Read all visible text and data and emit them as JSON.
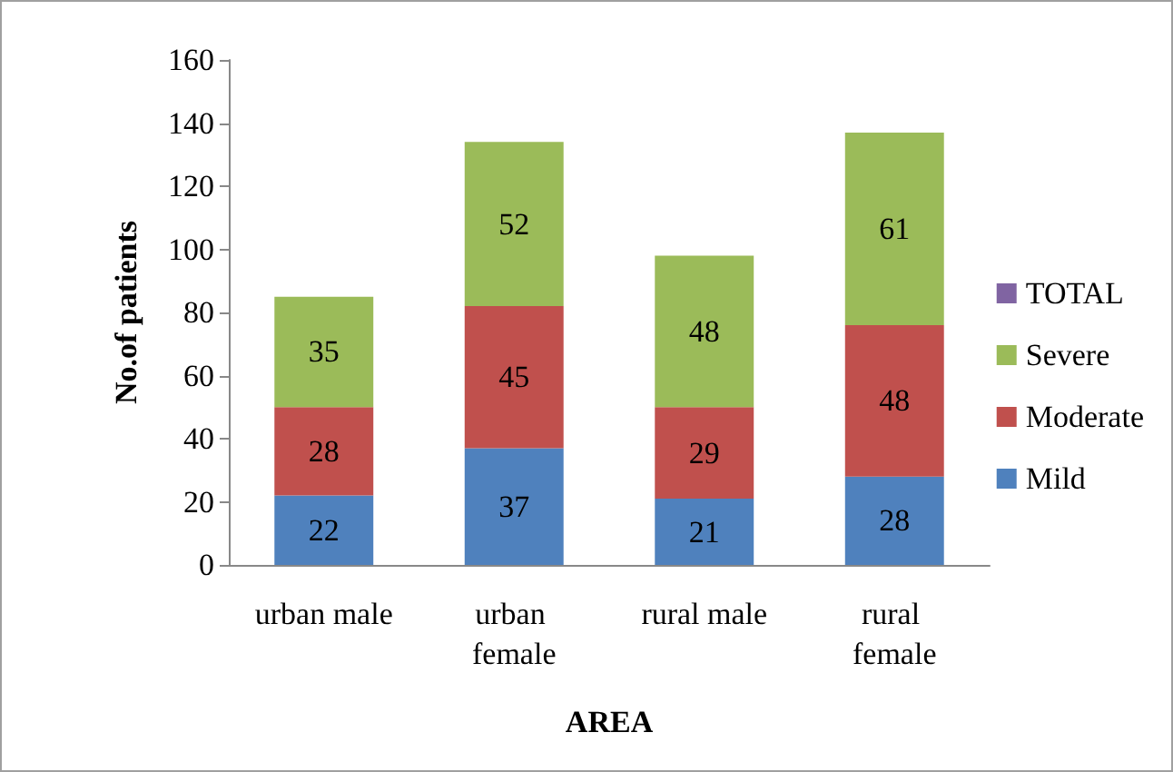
{
  "chart_data": {
    "type": "bar",
    "stacked": true,
    "xlabel": "AREA",
    "ylabel": "No.of patients",
    "categories": [
      "urban male",
      "urban female",
      "rural male",
      "rural female"
    ],
    "series": [
      {
        "name": "Mild",
        "color": "#4f81bd",
        "values": [
          22,
          37,
          21,
          28
        ]
      },
      {
        "name": "Moderate",
        "color": "#c0504d",
        "values": [
          28,
          45,
          29,
          48
        ]
      },
      {
        "name": "Severe",
        "color": "#9bbb59",
        "values": [
          35,
          52,
          48,
          61
        ]
      },
      {
        "name": "TOTAL",
        "color": "#8064a2",
        "values": [
          null,
          null,
          null,
          null
        ]
      }
    ],
    "ylim": [
      0,
      160
    ],
    "yticks": [
      0,
      20,
      40,
      60,
      80,
      100,
      120,
      140,
      160
    ],
    "grid": false,
    "legend": "right",
    "data_labels": true
  }
}
